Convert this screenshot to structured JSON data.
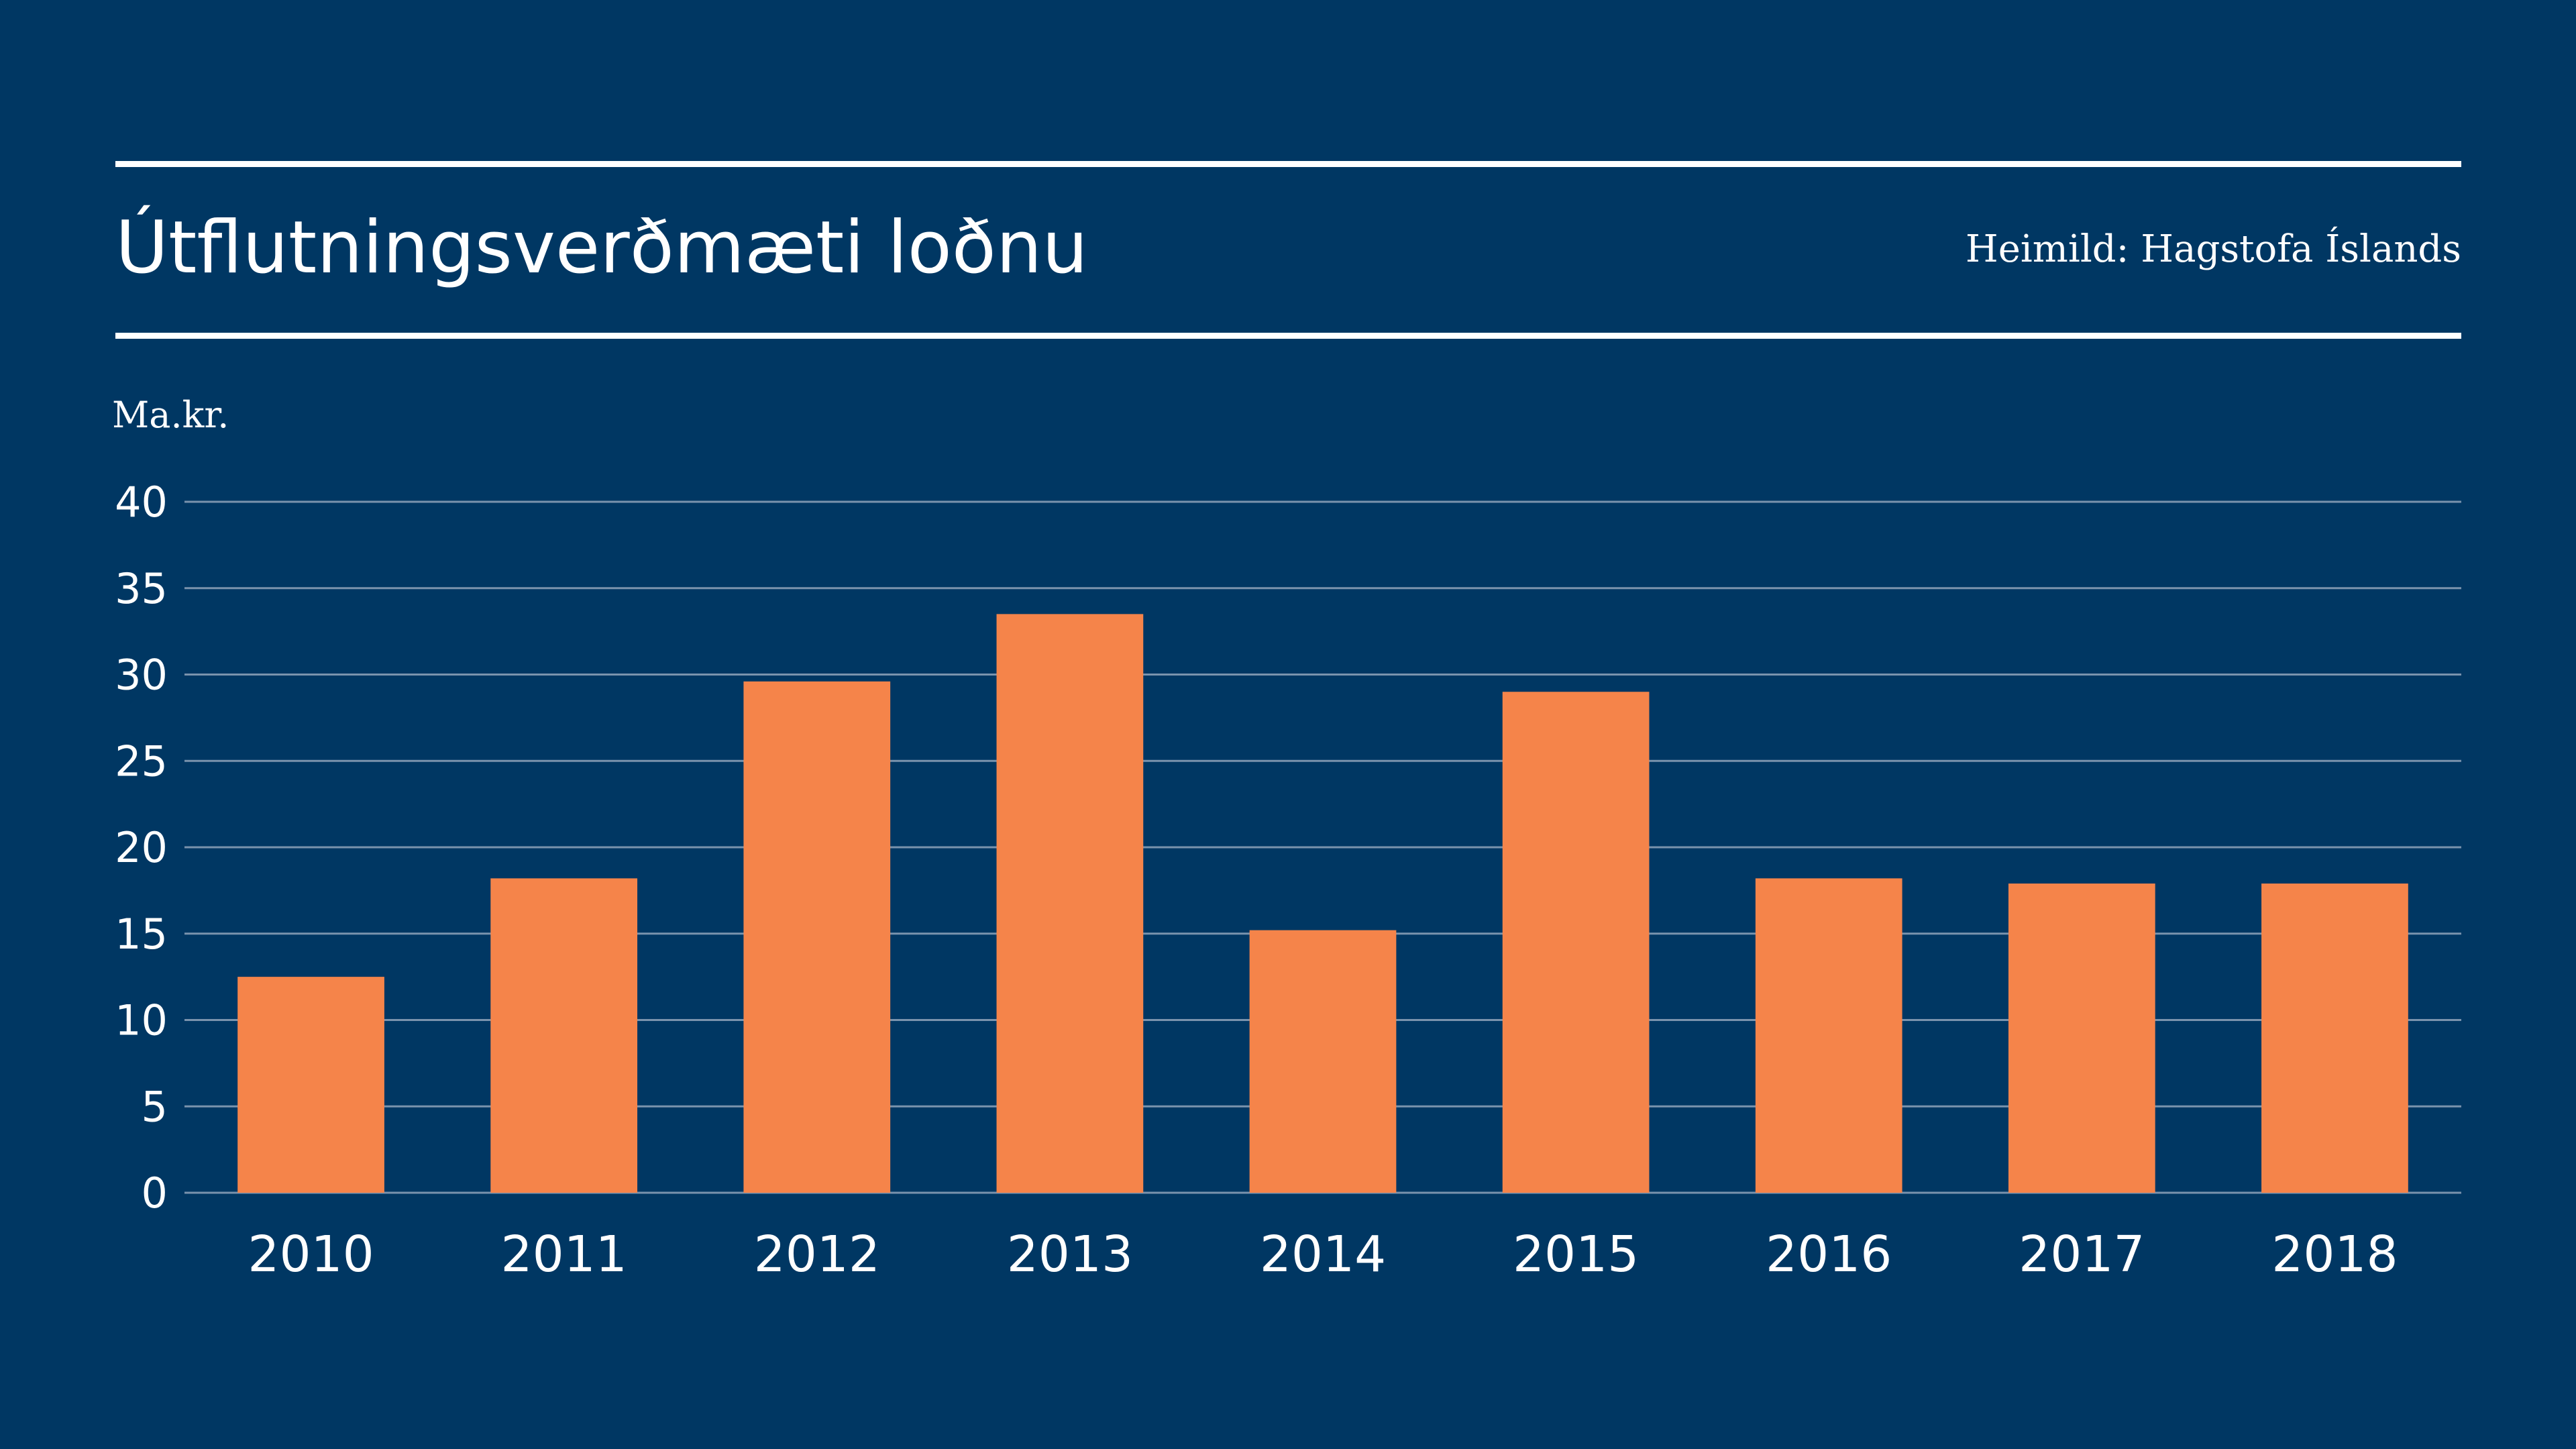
{
  "header": {
    "title": "Útflutningsverðmæti loðnu",
    "source": "Heimild: Hagstofa Íslands"
  },
  "colors": {
    "background": "#003763",
    "bar": "#f5844a",
    "gridline": "#7a93ad",
    "text": "#ffffff"
  },
  "chart_data": {
    "type": "bar",
    "title": "Útflutningsverðmæti loðnu",
    "ylabel": "Ma.kr.",
    "xlabel": "",
    "categories": [
      "2010",
      "2011",
      "2012",
      "2013",
      "2014",
      "2015",
      "2016",
      "2017",
      "2018"
    ],
    "values": [
      12.5,
      18.2,
      29.6,
      33.5,
      15.2,
      29,
      18.2,
      17.9,
      17.9
    ],
    "ylim": [
      0,
      40
    ],
    "yticks": [
      0,
      5,
      10,
      15,
      20,
      25,
      30,
      35,
      40
    ],
    "grid": true,
    "legend": "none"
  }
}
